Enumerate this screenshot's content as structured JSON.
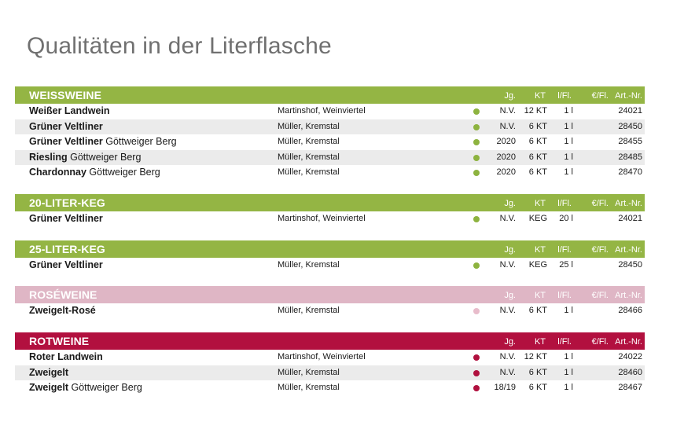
{
  "title": "Qualitäten in der Literflasche",
  "colors": {
    "green": "#94b544",
    "rose": "#dfb6c5",
    "red": "#b2103f",
    "dot_green": "#8db33f",
    "dot_rose": "#e8bccb",
    "dot_red": "#b0103e"
  },
  "columns": {
    "jg": "Jg.",
    "kt": "KT",
    "lfl": "l/Fl.",
    "eur": "€/Fl.",
    "art": "Art.-Nr."
  },
  "sections": [
    {
      "title": "WEISSWEINE",
      "rows": [
        {
          "wine_bold": "Weißer Landwein",
          "wine_rest": "",
          "producer": "Martinshof, Weinviertel",
          "jg": "N.V.",
          "kt": "12 KT",
          "lfl": "1 l",
          "eur": "",
          "art": "24021"
        },
        {
          "wine_bold": "Grüner Veltliner",
          "wine_rest": "",
          "producer": "Müller, Kremstal",
          "jg": "N.V.",
          "kt": "6 KT",
          "lfl": "1 l",
          "eur": "",
          "art": "28450"
        },
        {
          "wine_bold": "Grüner Veltliner",
          "wine_rest": " Göttweiger Berg",
          "producer": "Müller, Kremstal",
          "jg": "2020",
          "kt": "6 KT",
          "lfl": "1 l",
          "eur": "",
          "art": "28455"
        },
        {
          "wine_bold": "Riesling",
          "wine_rest": " Göttweiger Berg",
          "producer": "Müller, Kremstal",
          "jg": "2020",
          "kt": "6 KT",
          "lfl": "1 l",
          "eur": "",
          "art": "28485"
        },
        {
          "wine_bold": "Chardonnay",
          "wine_rest": " Göttweiger Berg",
          "producer": "Müller, Kremstal",
          "jg": "2020",
          "kt": "6 KT",
          "lfl": "1 l",
          "eur": "",
          "art": "28470"
        }
      ]
    },
    {
      "title": "20-LITER-KEG",
      "rows": [
        {
          "wine_bold": "Grüner Veltliner",
          "wine_rest": "",
          "producer": "Martinshof, Weinviertel",
          "jg": "N.V.",
          "kt": "KEG",
          "lfl": "20 l",
          "eur": "",
          "art": "24021"
        }
      ]
    },
    {
      "title": "25-LITER-KEG",
      "rows": [
        {
          "wine_bold": "Grüner Veltliner",
          "wine_rest": "",
          "producer": "Müller, Kremstal",
          "jg": "N.V.",
          "kt": "KEG",
          "lfl": "25 l",
          "eur": "",
          "art": "28450"
        }
      ]
    },
    {
      "title": "ROSÉWEINE",
      "rows": [
        {
          "wine_bold": "Zweigelt-Rosé",
          "wine_rest": "",
          "producer": "Müller, Kremstal",
          "jg": "N.V.",
          "kt": "6 KT",
          "lfl": "1 l",
          "eur": "",
          "art": "28466"
        }
      ]
    },
    {
      "title": "ROTWEINE",
      "rows": [
        {
          "wine_bold": "Roter Landwein",
          "wine_rest": "",
          "producer": "Martinshof, Weinviertel",
          "jg": "N.V.",
          "kt": "12 KT",
          "lfl": "1 l",
          "eur": "",
          "art": "24022"
        },
        {
          "wine_bold": "Zweigelt",
          "wine_rest": "",
          "producer": "Müller, Kremstal",
          "jg": "N.V.",
          "kt": "6 KT",
          "lfl": "1 l",
          "eur": "",
          "art": "28460"
        },
        {
          "wine_bold": "Zweigelt",
          "wine_rest": " Göttweiger Berg",
          "producer": "Müller, Kremstal",
          "jg": "18/19",
          "kt": "6 KT",
          "lfl": "1 l",
          "eur": "",
          "art": "28467"
        }
      ]
    }
  ]
}
